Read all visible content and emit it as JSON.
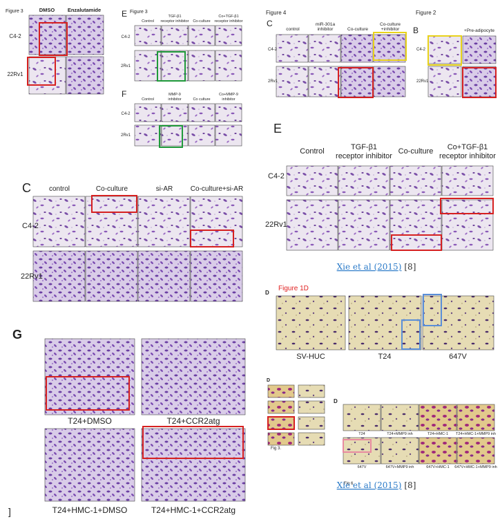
{
  "fig3_enza": {
    "figure": "Figure 3",
    "columns": [
      "DMSO",
      "Enzalutamide"
    ],
    "rows": [
      "C4-2",
      "22Rv1"
    ]
  },
  "fig3_e": {
    "panel": "E",
    "figure": "Figure 3",
    "columns": [
      "Control",
      [
        "TGF-β1",
        "receptor inhibitor"
      ],
      "Co-culture",
      [
        "Co+TGF-β1",
        "receptor inhibitor"
      ]
    ],
    "rows": [
      "C4-2",
      "2Rv1"
    ]
  },
  "fig3_f": {
    "panel": "F",
    "columns": [
      "Control",
      [
        "MMP-9",
        "inhibitor"
      ],
      "Co culture",
      [
        "Co+MMP-9",
        "inhibitor"
      ]
    ],
    "rows": [
      "C4-2",
      "2Rv1"
    ]
  },
  "panel_c": {
    "panel": "C",
    "columns": [
      "control",
      "Co-culture",
      "si-AR",
      "Co-culture+si-AR"
    ],
    "rows": [
      "C4-2",
      "22Rv1"
    ]
  },
  "panel_g": {
    "panel": "G",
    "captions": [
      "T24+DMSO",
      "T24+CCR2atg",
      "T24+HMC-1+DMSO",
      "T24+HMC-1+CCR2atg"
    ],
    "fragment": "]"
  },
  "fig4_c": {
    "figure": "Figure 4",
    "panel": "C",
    "columns": [
      "control",
      [
        "miR-301a",
        "inhibitor"
      ],
      "Co-culture",
      [
        "Co-culture",
        "+inhibitor"
      ]
    ],
    "rows": [
      "C4-2",
      "2Rv1"
    ]
  },
  "fig2_b": {
    "figure": "Figure 2",
    "panel": "B",
    "columns": [
      "+Pre-adipocyte"
    ],
    "rows": [
      "C4-2",
      "22Rv1"
    ]
  },
  "panel_e": {
    "panel": "E",
    "columns": [
      "Control",
      [
        "TGF-β1",
        "receptor inhibitor"
      ],
      "Co-culture",
      [
        "Co+TGF-β1",
        "receptor inhibitor"
      ]
    ],
    "rows": [
      "C4-2",
      "22Rv1"
    ],
    "citation": {
      "link": "Xie et al (2015)",
      "ref": "[8]"
    }
  },
  "fig1d": {
    "panel": "D",
    "figure": "Figure 1D",
    "captions": [
      "SV-HUC",
      "T24",
      "647V"
    ]
  },
  "fig3_small": {
    "panel": "D",
    "figure": "Fig 3."
  },
  "fig6": {
    "panel": "D",
    "figure": "Fig 6.",
    "captions": [
      "T24",
      "T24+MMP9 inh",
      "T24+HMC-1",
      "T24+HMC-1+MMP9 inh",
      "647V",
      "647V+MMP9 inh",
      "647V+HMC-1",
      "647V+HMC-1+MMP9 inh"
    ],
    "citation": {
      "link": "Xie et al (2015)",
      "ref": "[8]"
    }
  }
}
